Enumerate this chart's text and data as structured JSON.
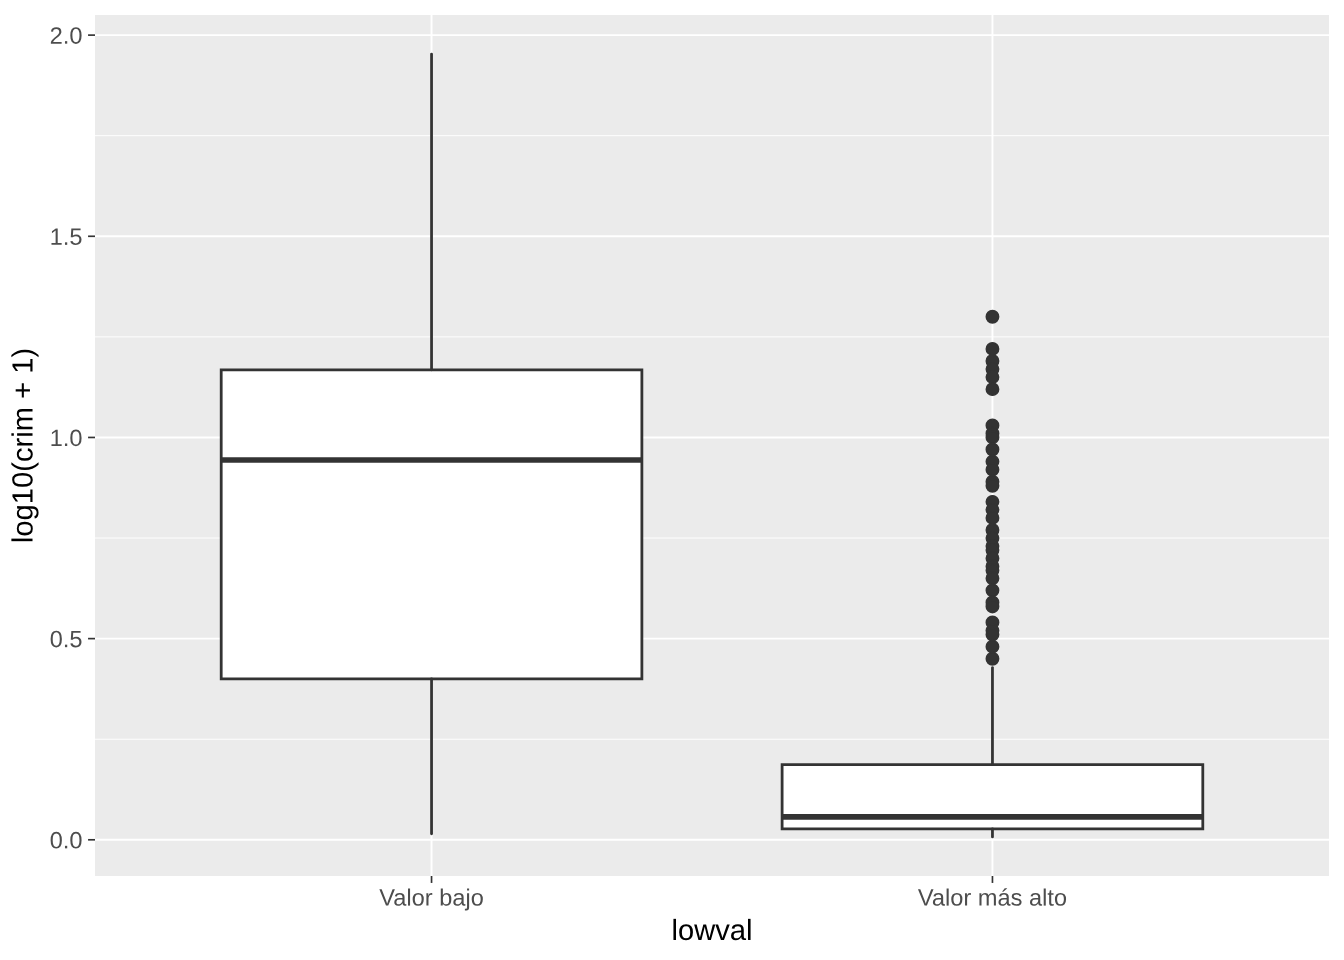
{
  "chart_data": {
    "type": "box",
    "categories": [
      "Valor bajo",
      "Valor más alto"
    ],
    "boxes": [
      {
        "low": 0.015,
        "q1": 0.4,
        "median": 0.944,
        "q3": 1.168,
        "high": 1.953
      },
      {
        "low": 0.007,
        "q1": 0.027,
        "median": 0.057,
        "q3": 0.187,
        "high": 0.428,
        "outliers": [
          1.3,
          1.22,
          1.19,
          1.17,
          1.15,
          1.12,
          1.03,
          1.01,
          1.0,
          0.97,
          0.94,
          0.92,
          0.89,
          0.88,
          0.84,
          0.82,
          0.8,
          0.77,
          0.75,
          0.73,
          0.72,
          0.7,
          0.68,
          0.67,
          0.65,
          0.62,
          0.59,
          0.58,
          0.54,
          0.52,
          0.51,
          0.48,
          0.45
        ]
      }
    ],
    "xlabel": "lowval",
    "ylabel": "log10(crim + 1)",
    "ylim": [
      -0.09,
      2.05
    ],
    "yticks": [
      {
        "value": 0,
        "label": "0.0"
      },
      0.5,
      {
        "value": 1,
        "label": "1.0"
      },
      1.5,
      {
        "value": 2,
        "label": "2.0"
      }
    ],
    "grid": true
  }
}
